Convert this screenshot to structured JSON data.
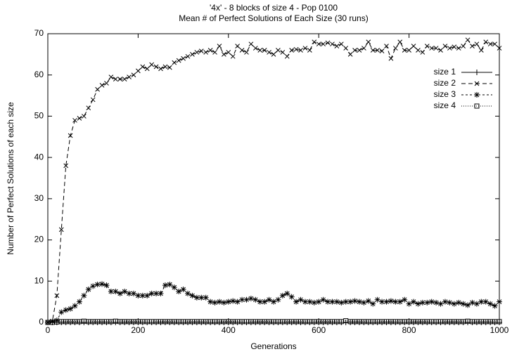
{
  "chart_data": {
    "type": "line",
    "title": "'4x' - 8 blocks of size 4 - Pop 0100",
    "subtitle": "Mean # of Perfect Solutions of Each Size (30 runs)",
    "x_label": "Generations",
    "y_label": "Number of Perfect Solutions of each size",
    "xlim": [
      0,
      1000
    ],
    "xticks": [
      0,
      200,
      400,
      600,
      800,
      1000
    ],
    "ylim": [
      0,
      70
    ],
    "yticks": [
      0,
      10,
      20,
      30,
      40,
      50,
      60,
      70
    ],
    "legend": "top-right",
    "x": [
      0,
      10,
      20,
      30,
      40,
      50,
      60,
      70,
      80,
      90,
      100,
      110,
      120,
      130,
      140,
      150,
      160,
      170,
      180,
      190,
      200,
      210,
      220,
      230,
      240,
      250,
      260,
      270,
      280,
      290,
      300,
      310,
      320,
      330,
      340,
      350,
      360,
      370,
      380,
      390,
      400,
      410,
      420,
      430,
      440,
      450,
      460,
      470,
      480,
      490,
      500,
      510,
      520,
      530,
      540,
      550,
      560,
      570,
      580,
      590,
      600,
      610,
      620,
      630,
      640,
      650,
      660,
      670,
      680,
      690,
      700,
      710,
      720,
      730,
      740,
      750,
      760,
      770,
      780,
      790,
      800,
      810,
      820,
      830,
      840,
      850,
      860,
      870,
      880,
      890,
      900,
      910,
      920,
      930,
      940,
      950,
      960,
      970,
      980,
      990,
      1000
    ],
    "series": [
      {
        "name": "size 1",
        "color": "#000000",
        "linestyle": "solid",
        "marker": "plus",
        "values": [
          0,
          0,
          0,
          0,
          0,
          0,
          0,
          0,
          0,
          0,
          0,
          0,
          0,
          0,
          0,
          0,
          0,
          0,
          0,
          0,
          0,
          0,
          0,
          0,
          0,
          0,
          0,
          0,
          0,
          0,
          0,
          0,
          0,
          0,
          0,
          0,
          0,
          0,
          0,
          0,
          0,
          0,
          0,
          0,
          0,
          0,
          0,
          0,
          0,
          0,
          0,
          0,
          0,
          0,
          0,
          0,
          0,
          0,
          0,
          0,
          0,
          0,
          0,
          0,
          0,
          0,
          0,
          0,
          0,
          0,
          0,
          0,
          0,
          0,
          0,
          0,
          0,
          0,
          0,
          0,
          0,
          0,
          0,
          0,
          0,
          0,
          0,
          0,
          0,
          0,
          0,
          0,
          0,
          0,
          0,
          0,
          0,
          0,
          0,
          0,
          0
        ]
      },
      {
        "name": "size 2",
        "color": "#000000",
        "linestyle": "dashed",
        "marker": "cross",
        "values": [
          0,
          0.3,
          6.5,
          22.5,
          38,
          45.3,
          49,
          49.5,
          50,
          52,
          54,
          56.5,
          57.5,
          58,
          59.5,
          59,
          59,
          59,
          59.5,
          60,
          61,
          62,
          61.5,
          62.5,
          62,
          61.5,
          62,
          61.8,
          63,
          63.5,
          64,
          64.5,
          65,
          65.5,
          65.8,
          65.5,
          66,
          65.5,
          67,
          65,
          65.5,
          64.5,
          67,
          66,
          65.5,
          67.5,
          66.5,
          66,
          66,
          65.5,
          65,
          66,
          65.5,
          64.5,
          66,
          66.2,
          66,
          66.5,
          66,
          68,
          67.5,
          67.5,
          67.8,
          67.5,
          67,
          67.5,
          66.5,
          65,
          66,
          66,
          66.5,
          68,
          66,
          66,
          65.8,
          67,
          64,
          66.5,
          68,
          66,
          66,
          67,
          66,
          65.5,
          67,
          66.5,
          66.5,
          66,
          67,
          66.5,
          66.8,
          66.5,
          67,
          68.5,
          67,
          67.5,
          66,
          68,
          67.5,
          67.5,
          66.5
        ]
      },
      {
        "name": "size 3",
        "color": "#000000",
        "linestyle": "dashdot",
        "marker": "star",
        "values": [
          0,
          0.2,
          0.5,
          2.5,
          3,
          3.3,
          4,
          5,
          6.5,
          8,
          8.8,
          9.2,
          9.3,
          9,
          7.5,
          7.5,
          7,
          7.5,
          7,
          7,
          6.5,
          6.5,
          6.5,
          7,
          7,
          7,
          9,
          9.2,
          8.5,
          7.5,
          8,
          7,
          6.5,
          6,
          6,
          6,
          5,
          4.8,
          5,
          4.8,
          5,
          5.2,
          5,
          5.5,
          5.5,
          5.8,
          5.5,
          5,
          5,
          5.5,
          5,
          5.5,
          6.5,
          7,
          6.2,
          5,
          5.5,
          5,
          5,
          4.8,
          5,
          5.5,
          5,
          5,
          5,
          4.8,
          5,
          5,
          5.2,
          5,
          4.8,
          5.2,
          4.5,
          5.5,
          5,
          5,
          5.2,
          5,
          5,
          5.5,
          4.5,
          5,
          4.5,
          4.8,
          4.8,
          5,
          4.8,
          4.5,
          5,
          4.8,
          4.5,
          4.8,
          4.5,
          4.2,
          4.8,
          4.5,
          5,
          5,
          4.5,
          4,
          5
        ]
      },
      {
        "name": "size 4",
        "color": "#000000",
        "linestyle": "dotted",
        "marker": "square",
        "values": [
          0,
          0,
          0.1,
          0.2,
          0.2,
          0.2,
          0.2,
          0.2,
          0.3,
          0.2,
          0.2,
          0.2,
          0.2,
          0.2,
          0.2,
          0.3,
          0.2,
          0.2,
          0.2,
          0.2,
          0.2,
          0.2,
          0.2,
          0.2,
          0.2,
          0.2,
          0.2,
          0.2,
          0.2,
          0.2,
          0.2,
          0.2,
          0.2,
          0.2,
          0.2,
          0.2,
          0.2,
          0.2,
          0.2,
          0.2,
          0.2,
          0.2,
          0.2,
          0.2,
          0.2,
          0.2,
          0.2,
          0.2,
          0.2,
          0.2,
          0.2,
          0.2,
          0.2,
          0.2,
          0.2,
          0.2,
          0.2,
          0.2,
          0.2,
          0.2,
          0.2,
          0.2,
          0.2,
          0.2,
          0.2,
          0.2,
          0.4,
          0.2,
          0.2,
          0.2,
          0.2,
          0.2,
          0.2,
          0.2,
          0.2,
          0.2,
          0.2,
          0.2,
          0.2,
          0.2,
          0.2,
          0.2,
          0.2,
          0.2,
          0.2,
          0.2,
          0.2,
          0.2,
          0.2,
          0.2,
          0.2,
          0.2,
          0.2,
          0.3,
          0.2,
          0.2,
          0.2,
          0.2,
          0.2,
          0.2,
          0.2
        ]
      }
    ]
  }
}
